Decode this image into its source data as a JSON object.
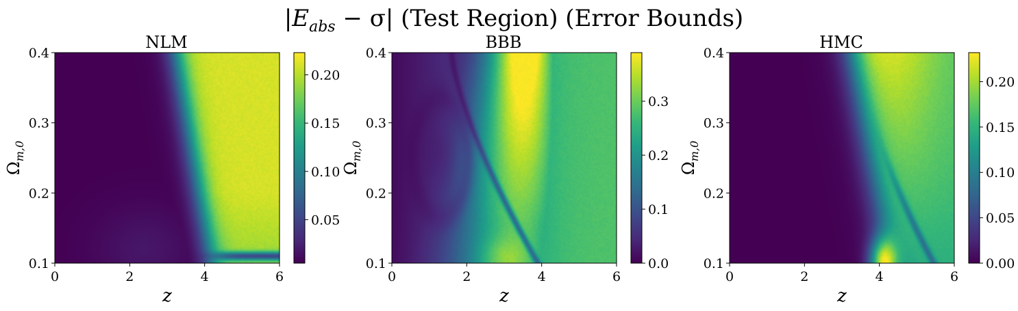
{
  "figure": {
    "title_main": "|E",
    "title_sub": "abs",
    "title_rest": " − σ| (Test Region) (Error Bounds)"
  },
  "colormap": {
    "name": "viridis",
    "stops": [
      "#440154",
      "#482878",
      "#3e4989",
      "#31688e",
      "#26828e",
      "#1f9e89",
      "#35b779",
      "#6ece58",
      "#b5de2b",
      "#fde725"
    ]
  },
  "chart_data": [
    {
      "type": "heatmap",
      "title": "NLM",
      "xlabel": "z",
      "ylabel": "Ωm,0",
      "xlim": [
        0,
        6
      ],
      "ylim": [
        0.1,
        0.4
      ],
      "x_ticks": [
        "0",
        "2",
        "4",
        "6"
      ],
      "y_ticks": [
        "0.1",
        "0.2",
        "0.3",
        "0.4"
      ],
      "colorbar": {
        "min": 0.005,
        "max": 0.223,
        "ticks": [
          "0.05",
          "0.10",
          "0.15",
          "0.20"
        ],
        "tick_values": [
          0.05,
          0.1,
          0.15,
          0.2
        ]
      },
      "regions": [
        {
          "description": "low error region",
          "z_range": [
            0,
            3.5
          ],
          "value": 0.01
        },
        {
          "description": "high error region",
          "z_range": [
            4.5,
            6
          ],
          "omega_range": [
            0.2,
            0.4
          ],
          "value": 0.2
        }
      ]
    },
    {
      "type": "heatmap",
      "title": "BBB",
      "xlabel": "z",
      "ylabel": "Ωm,0",
      "xlim": [
        0,
        6
      ],
      "ylim": [
        0.1,
        0.4
      ],
      "x_ticks": [
        "0",
        "2",
        "4",
        "6"
      ],
      "y_ticks": [
        "0.1",
        "0.2",
        "0.3",
        "0.4"
      ],
      "colorbar": {
        "min": 0.0,
        "max": 0.39,
        "ticks": [
          "0.0",
          "0.1",
          "0.2",
          "0.3"
        ],
        "tick_values": [
          0.0,
          0.1,
          0.2,
          0.3
        ]
      },
      "regions": [
        {
          "description": "peak error ridge",
          "z_range": [
            3.2,
            4.2
          ],
          "omega_range": [
            0.3,
            0.4
          ],
          "value": 0.38
        },
        {
          "description": "high z plateau",
          "z_range": [
            5,
            6
          ],
          "value": 0.23
        }
      ]
    },
    {
      "type": "heatmap",
      "title": "HMC",
      "xlabel": "z",
      "ylabel": "Ωm,0",
      "xlim": [
        0,
        6
      ],
      "ylim": [
        0.1,
        0.4
      ],
      "x_ticks": [
        "0",
        "2",
        "4",
        "6"
      ],
      "y_ticks": [
        "0.1",
        "0.2",
        "0.3",
        "0.4"
      ],
      "colorbar": {
        "min": 0.0,
        "max": 0.232,
        "ticks": [
          "0.00",
          "0.05",
          "0.10",
          "0.15",
          "0.20"
        ],
        "tick_values": [
          0.0,
          0.05,
          0.1,
          0.15,
          0.2
        ]
      },
      "regions": [
        {
          "description": "low error region",
          "z_range": [
            0,
            3.2
          ],
          "value": 0.005
        },
        {
          "description": "high error region",
          "z_range": [
            4,
            5.5
          ],
          "omega_range": [
            0.3,
            0.4
          ],
          "value": 0.22
        },
        {
          "description": "local bump",
          "z_range": [
            3.8,
            4.4
          ],
          "omega_range": [
            0.1,
            0.13
          ],
          "value": 0.18
        }
      ]
    }
  ]
}
